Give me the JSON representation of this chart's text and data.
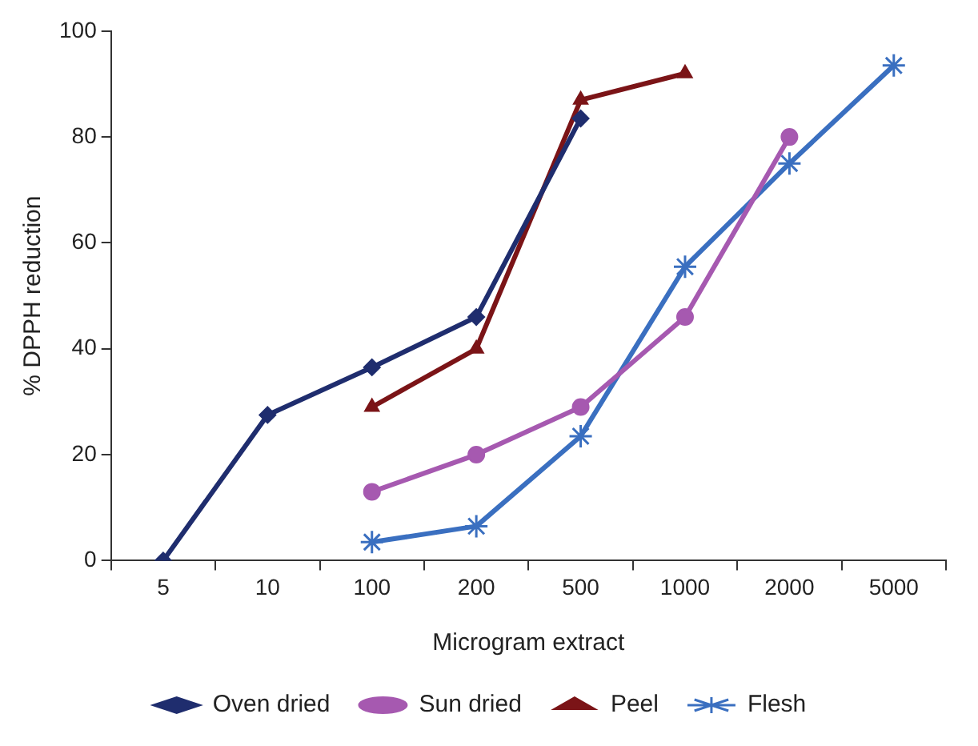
{
  "chart_data": {
    "type": "line",
    "xlabel": "Microgram extract",
    "ylabel": "% DPPH reduction",
    "categories": [
      "5",
      "10",
      "100",
      "200",
      "500",
      "1000",
      "2000",
      "5000"
    ],
    "ylim": [
      0,
      100
    ],
    "yticks": [
      0,
      20,
      40,
      60,
      80,
      100
    ],
    "grid": false,
    "legend": "bottom",
    "line_style": "solid",
    "series": [
      {
        "name": "Oven dried",
        "color": "#1f2d6e",
        "marker": "diamond",
        "values": [
          0,
          27.5,
          36.5,
          46,
          83.5,
          null,
          null,
          null
        ]
      },
      {
        "name": "Sun dried",
        "color": "#a659b0",
        "marker": "circle",
        "values": [
          null,
          null,
          13,
          20,
          29,
          46,
          80,
          null
        ]
      },
      {
        "name": "Peel",
        "color": "#7b1417",
        "marker": "triangle",
        "values": [
          null,
          null,
          29,
          40,
          87,
          92,
          null,
          null
        ]
      },
      {
        "name": "Flesh",
        "color": "#3a6fc0",
        "marker": "cross",
        "values": [
          null,
          null,
          3.5,
          6.5,
          23.5,
          55.5,
          75,
          93.5
        ]
      }
    ]
  }
}
